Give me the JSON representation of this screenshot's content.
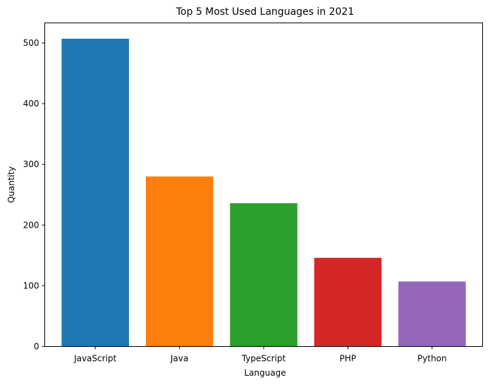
{
  "chart_data": {
    "type": "bar",
    "title": "Top 5 Most Used Languages in 2021",
    "xlabel": "Language",
    "ylabel": "Quantity",
    "categories": [
      "JavaScript",
      "Java",
      "TypeScript",
      "PHP",
      "Python"
    ],
    "values": [
      507,
      280,
      236,
      146,
      107
    ],
    "colors": [
      "#1f77b4",
      "#ff7f0e",
      "#2ca02c",
      "#d62728",
      "#9467bd"
    ],
    "ylim": [
      0,
      533
    ],
    "yticks": [
      0,
      100,
      200,
      300,
      400,
      500
    ],
    "grid": false,
    "legend": "none"
  }
}
